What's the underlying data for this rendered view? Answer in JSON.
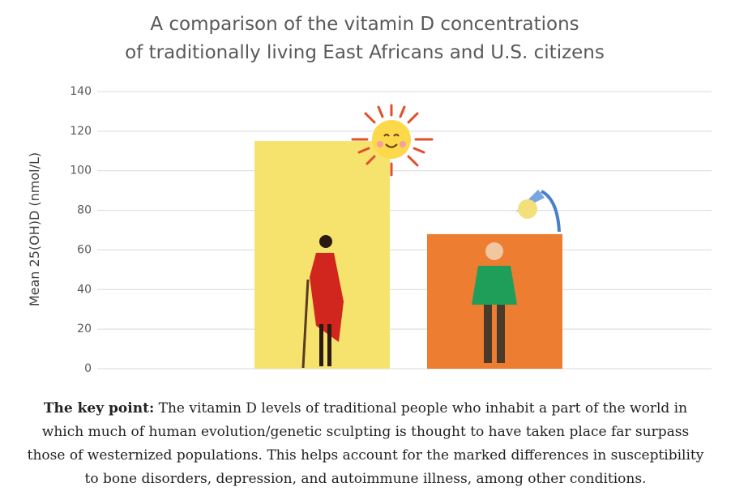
{
  "chart_data": {
    "type": "bar",
    "title": "A comparison of the vitamin D concentrations of traditionally living East Africans and U.S. citizens",
    "y_label": "Mean 25(OH)D (nmol/L)",
    "categories": [
      null,
      null
    ],
    "values": [
      115,
      68
    ],
    "colors": [
      "#f5e36e",
      "#ed7d31"
    ],
    "ylim": [
      0,
      140
    ],
    "yticks": [
      0,
      20,
      40,
      60,
      80,
      100,
      120,
      140
    ],
    "grid": true
  },
  "caption": {
    "lead": "The key point:",
    "text": "The vitamin D levels of traditional people who inhabit a part of the world in which much of human evolution/genetic sculpting is thought to have taken place far surpass those of westernized populations. This helps account for the marked differences in susceptibility to bone disorders, depression, and autoimmune illness, among other conditions."
  }
}
